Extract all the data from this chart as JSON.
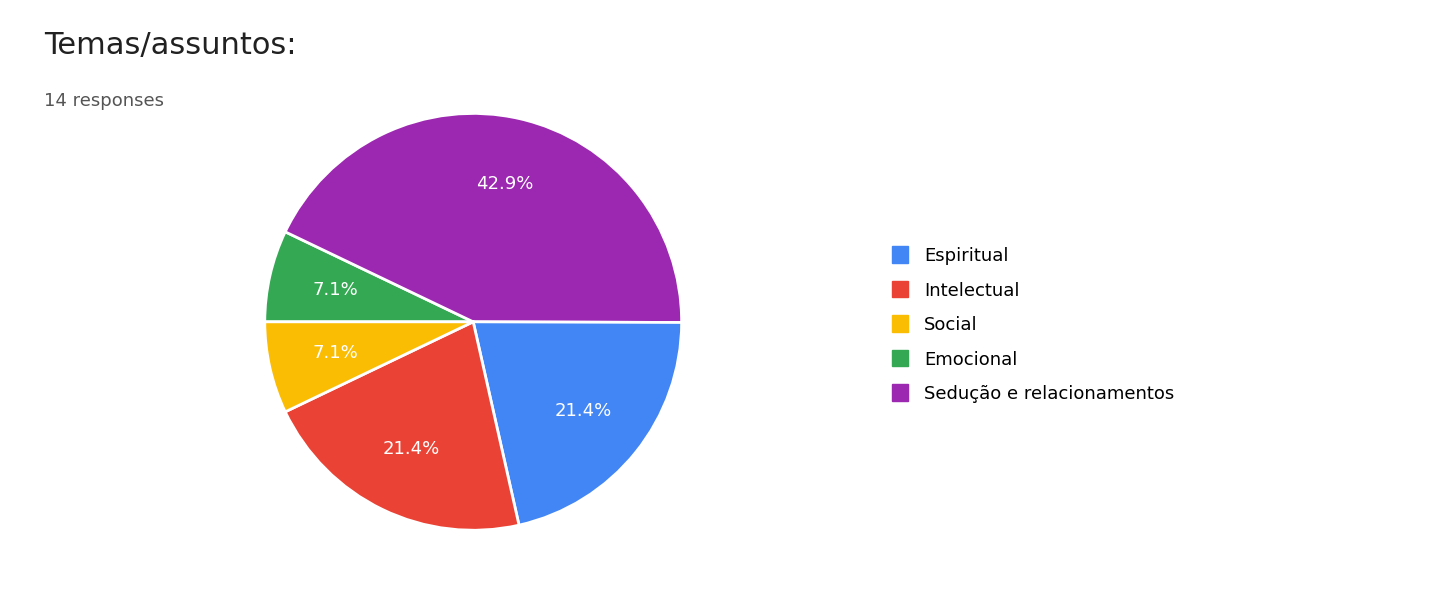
{
  "title": "Temas/assuntos:",
  "subtitle": "14 responses",
  "labels": [
    "Espiritual",
    "Intelectual",
    "Social",
    "Emocional",
    "Sedução e relacionamentos"
  ],
  "values": [
    21.4,
    21.4,
    7.1,
    7.1,
    42.9
  ],
  "colors": [
    "#4285F4",
    "#EA4335",
    "#FBBC04",
    "#34A853",
    "#9C27B0"
  ],
  "background_color": "#ffffff",
  "title_fontsize": 22,
  "subtitle_fontsize": 13,
  "legend_fontsize": 13,
  "autopct_fontsize": 13
}
